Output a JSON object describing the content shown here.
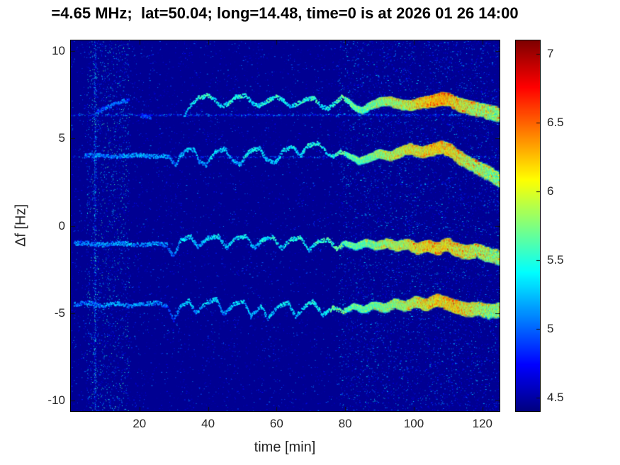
{
  "colors": {
    "figure_bg": "#ffffff",
    "axis_text": "#262626",
    "title_text": "#000000",
    "spectrogram_bg": "#000092"
  },
  "chart_data": {
    "type": "heatmap",
    "title": "=4.65 MHz;  lat=50.04; long=14.48, time=0 is at 2026 01 26 14:00",
    "xlabel": "time [min]",
    "ylabel": "Δf [Hz]",
    "xlim": [
      0,
      125
    ],
    "ylim": [
      -10.6,
      10.6
    ],
    "x_ticks": [
      20,
      40,
      60,
      80,
      100,
      120
    ],
    "y_ticks": [
      10,
      5,
      0,
      -5,
      -10
    ],
    "grid": false,
    "colorbar": {
      "position": "right",
      "colormap": "jet",
      "clim": [
        4.4,
        7.1
      ],
      "ticks": [
        4.5,
        5,
        5.5,
        6,
        6.5,
        7
      ]
    },
    "background_value": 4.45,
    "noise": {
      "base_count": 12000,
      "base_vmax": 5.1,
      "left_band": {
        "x_range": [
          4.5,
          17
        ],
        "count": 3000,
        "vmax": 5.6
      },
      "vertical_line": {
        "x": 7,
        "count": 900,
        "vmax": 5.7
      },
      "right_region": {
        "x_start": 78,
        "count": 9000,
        "vmax": 5.3
      },
      "horizontal_lines": [
        {
          "y": 6.35,
          "count": 1100,
          "vmax": 5.4
        },
        {
          "y": 3.95,
          "count": 700,
          "vmax": 5.3
        }
      ]
    },
    "trace_style": {
      "thin_width_hz": 0.12,
      "thick_start_x": 80,
      "width_growth_per_min": 0.006,
      "dropout_prob": 0.25
    },
    "traces": [
      {
        "name": "trace-7hz-early",
        "points": [
          [
            7.5,
            6.5,
            4.95
          ],
          [
            12,
            6.9,
            5.05
          ],
          [
            17,
            7.2,
            4.95
          ]
        ]
      },
      {
        "name": "trace-7hz-fragment",
        "points": [
          [
            20.5,
            6.3,
            4.9
          ],
          [
            23.5,
            6.2,
            4.9
          ]
        ]
      },
      {
        "name": "trace-7hz",
        "points": [
          [
            33,
            6.2,
            5.2
          ],
          [
            35,
            6.9,
            5.35
          ],
          [
            37,
            7.3,
            5.45
          ],
          [
            40,
            7.45,
            5.5
          ],
          [
            42,
            7.2,
            5.35
          ],
          [
            44,
            6.8,
            5.3
          ],
          [
            46,
            7.0,
            5.45
          ],
          [
            48,
            7.35,
            5.5
          ],
          [
            51,
            7.45,
            5.5
          ],
          [
            53,
            7.0,
            5.3
          ],
          [
            55,
            6.85,
            5.35
          ],
          [
            57,
            7.1,
            5.5
          ],
          [
            60,
            7.4,
            5.55
          ],
          [
            62,
            7.15,
            5.4
          ],
          [
            64,
            6.8,
            5.3
          ],
          [
            66,
            6.95,
            5.45
          ],
          [
            68,
            7.2,
            5.5
          ],
          [
            71,
            7.3,
            5.5
          ],
          [
            73,
            6.8,
            5.3
          ],
          [
            75,
            6.7,
            5.4
          ],
          [
            77,
            7.0,
            5.55
          ],
          [
            79,
            7.35,
            5.7
          ],
          [
            81,
            7.1,
            5.8
          ],
          [
            83,
            6.7,
            5.9
          ],
          [
            85,
            6.6,
            6.05
          ],
          [
            87,
            6.85,
            6.25
          ],
          [
            90,
            7.1,
            6.45
          ],
          [
            93,
            7.15,
            6.5
          ],
          [
            96,
            6.95,
            6.5
          ],
          [
            99,
            6.9,
            6.6
          ],
          [
            102,
            7.05,
            6.75
          ],
          [
            105,
            7.15,
            6.85
          ],
          [
            108,
            7.3,
            6.9
          ],
          [
            110,
            7.25,
            6.85
          ],
          [
            112,
            7.05,
            6.7
          ],
          [
            114,
            6.9,
            6.6
          ],
          [
            117,
            6.75,
            6.5
          ],
          [
            120,
            6.6,
            6.45
          ],
          [
            123,
            6.45,
            6.4
          ],
          [
            125,
            6.35,
            6.35
          ]
        ]
      },
      {
        "name": "trace-4hz",
        "points": [
          [
            4,
            4.0,
            5.0
          ],
          [
            8,
            4.05,
            5.1
          ],
          [
            12,
            3.95,
            5.05
          ],
          [
            16,
            4.0,
            5.1
          ],
          [
            20,
            4.05,
            5.15
          ],
          [
            24,
            3.95,
            5.1
          ],
          [
            27,
            4.0,
            5.15
          ],
          [
            29,
            3.9,
            5.0
          ],
          [
            30.5,
            3.4,
            4.95
          ],
          [
            32,
            4.05,
            5.25
          ],
          [
            34,
            4.3,
            5.3
          ],
          [
            36,
            4.35,
            5.3
          ],
          [
            37.5,
            3.65,
            5.1
          ],
          [
            39.5,
            3.45,
            5.15
          ],
          [
            42,
            4.2,
            5.35
          ],
          [
            45,
            4.4,
            5.3
          ],
          [
            47,
            3.75,
            5.15
          ],
          [
            49.5,
            3.5,
            5.25
          ],
          [
            52,
            4.25,
            5.35
          ],
          [
            55,
            4.45,
            5.35
          ],
          [
            57,
            3.8,
            5.2
          ],
          [
            59.5,
            3.55,
            5.25
          ],
          [
            62,
            4.3,
            5.4
          ],
          [
            65,
            4.5,
            5.4
          ],
          [
            67,
            4.0,
            5.25
          ],
          [
            69,
            4.55,
            5.45
          ],
          [
            72,
            4.75,
            5.45
          ],
          [
            74.5,
            4.2,
            5.3
          ],
          [
            76.5,
            3.95,
            5.45
          ],
          [
            78.5,
            4.25,
            5.6
          ],
          [
            81,
            4.0,
            5.85
          ],
          [
            84,
            3.7,
            6.1
          ],
          [
            87,
            3.9,
            6.3
          ],
          [
            90,
            4.15,
            6.45
          ],
          [
            93,
            4.0,
            6.5
          ],
          [
            96,
            4.25,
            6.55
          ],
          [
            99,
            4.45,
            6.65
          ],
          [
            102,
            4.2,
            6.65
          ],
          [
            105,
            4.35,
            6.75
          ],
          [
            108,
            4.55,
            6.75
          ],
          [
            110.5,
            4.35,
            6.7
          ],
          [
            113,
            3.95,
            6.6
          ],
          [
            116,
            3.6,
            6.5
          ],
          [
            119,
            3.3,
            6.45
          ],
          [
            122,
            3.0,
            6.35
          ],
          [
            125,
            2.6,
            6.25
          ]
        ]
      },
      {
        "name": "trace-minus1hz",
        "points": [
          [
            1,
            -1.0,
            5.0
          ],
          [
            5,
            -1.0,
            5.05
          ],
          [
            9,
            -1.1,
            5.1
          ],
          [
            13,
            -1.0,
            5.1
          ],
          [
            17,
            -1.05,
            5.15
          ],
          [
            21,
            -1.1,
            5.1
          ],
          [
            25,
            -1.0,
            5.15
          ],
          [
            28,
            -1.1,
            5.1
          ],
          [
            30,
            -1.8,
            4.95
          ],
          [
            32,
            -0.85,
            5.25
          ],
          [
            35,
            -0.6,
            5.3
          ],
          [
            37,
            -1.2,
            5.1
          ],
          [
            40,
            -0.7,
            5.35
          ],
          [
            43,
            -0.6,
            5.35
          ],
          [
            45.5,
            -1.25,
            5.15
          ],
          [
            48,
            -0.7,
            5.35
          ],
          [
            51,
            -0.6,
            5.35
          ],
          [
            53.5,
            -1.3,
            5.15
          ],
          [
            56,
            -0.8,
            5.35
          ],
          [
            59,
            -0.65,
            5.45
          ],
          [
            61.5,
            -1.3,
            5.25
          ],
          [
            64,
            -0.8,
            5.45
          ],
          [
            67,
            -0.7,
            5.45
          ],
          [
            69.5,
            -1.4,
            5.25
          ],
          [
            72,
            -0.9,
            5.5
          ],
          [
            75,
            -0.8,
            5.5
          ],
          [
            77.5,
            -1.3,
            5.65
          ],
          [
            80,
            -1.0,
            5.85
          ],
          [
            83,
            -1.2,
            6.05
          ],
          [
            86,
            -0.95,
            6.25
          ],
          [
            89,
            -1.15,
            6.4
          ],
          [
            92,
            -0.95,
            6.5
          ],
          [
            95,
            -1.15,
            6.5
          ],
          [
            98,
            -1.0,
            6.55
          ],
          [
            101,
            -1.3,
            6.65
          ],
          [
            104,
            -1.1,
            6.75
          ],
          [
            107,
            -1.3,
            6.75
          ],
          [
            109.5,
            -1.0,
            6.7
          ],
          [
            112,
            -1.3,
            6.65
          ],
          [
            115,
            -1.5,
            6.6
          ],
          [
            118,
            -1.4,
            6.5
          ],
          [
            121,
            -1.6,
            6.45
          ],
          [
            125,
            -1.8,
            6.3
          ]
        ]
      },
      {
        "name": "trace-minus4p5hz",
        "points": [
          [
            1,
            -4.5,
            5.0
          ],
          [
            5,
            -4.4,
            5.05
          ],
          [
            9,
            -4.6,
            5.1
          ],
          [
            13,
            -4.45,
            5.15
          ],
          [
            17,
            -4.6,
            5.1
          ],
          [
            21,
            -4.5,
            5.15
          ],
          [
            25,
            -4.4,
            5.1
          ],
          [
            28,
            -4.6,
            5.0
          ],
          [
            30,
            -5.4,
            4.9
          ],
          [
            32,
            -4.6,
            5.2
          ],
          [
            34.5,
            -4.3,
            5.25
          ],
          [
            36.5,
            -5.0,
            5.1
          ],
          [
            39.5,
            -4.4,
            5.3
          ],
          [
            42.5,
            -4.2,
            5.3
          ],
          [
            44.5,
            -5.1,
            5.1
          ],
          [
            47.5,
            -4.5,
            5.3
          ],
          [
            50.5,
            -4.3,
            5.3
          ],
          [
            52.5,
            -5.2,
            5.1
          ],
          [
            55.5,
            -4.6,
            5.3
          ],
          [
            57.5,
            -5.3,
            5.15
          ],
          [
            60.5,
            -4.6,
            5.35
          ],
          [
            63.5,
            -4.4,
            5.35
          ],
          [
            65.5,
            -5.2,
            5.2
          ],
          [
            68.5,
            -4.6,
            5.4
          ],
          [
            70.5,
            -4.3,
            5.45
          ],
          [
            73.5,
            -5.1,
            5.3
          ],
          [
            76.5,
            -4.7,
            5.55
          ],
          [
            79.5,
            -4.9,
            5.75
          ],
          [
            82.5,
            -4.6,
            5.95
          ],
          [
            85.5,
            -4.8,
            6.15
          ],
          [
            88.5,
            -4.5,
            6.3
          ],
          [
            91.5,
            -4.7,
            6.4
          ],
          [
            94.5,
            -4.4,
            6.4
          ],
          [
            97.5,
            -4.6,
            6.5
          ],
          [
            100.5,
            -4.3,
            6.55
          ],
          [
            103.5,
            -4.5,
            6.65
          ],
          [
            106.5,
            -4.2,
            6.7
          ],
          [
            109.5,
            -4.4,
            6.75
          ],
          [
            112.5,
            -4.6,
            6.75
          ],
          [
            115.5,
            -4.8,
            6.6
          ],
          [
            118.5,
            -4.7,
            6.5
          ],
          [
            121.5,
            -4.9,
            6.4
          ],
          [
            125,
            -4.8,
            6.3
          ]
        ]
      }
    ]
  }
}
